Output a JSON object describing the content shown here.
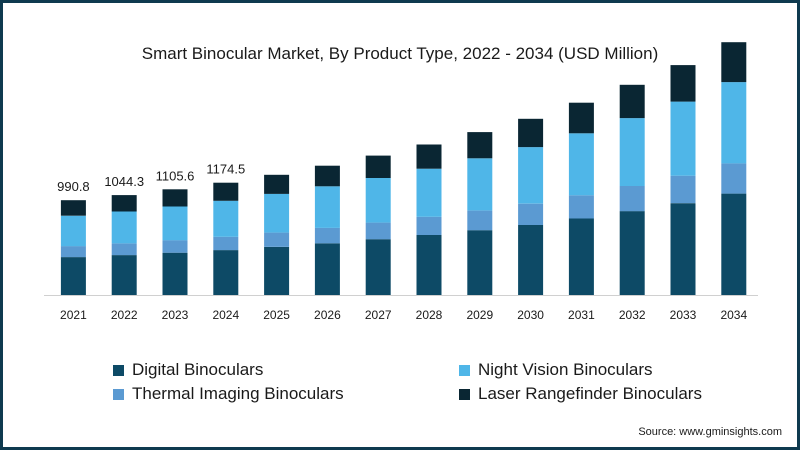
{
  "chart_data": {
    "type": "bar",
    "stacked": true,
    "title": "Smart Binocular Market, By Product Type, 2022 - 2034 (USD Million)",
    "categories": [
      "2021",
      "2022",
      "2023",
      "2024",
      "2025",
      "2026",
      "2027",
      "2028",
      "2029",
      "2030",
      "2031",
      "2032",
      "2033",
      "2034"
    ],
    "series": [
      {
        "name": "Digital Binoculars",
        "color": "#0d4a66",
        "values": [
          396.3,
          417.7,
          442.2,
          469.8,
          502,
          541,
          583,
          628,
          678,
          732,
          800,
          877,
          960,
          1060
        ]
      },
      {
        "name": "Thermal Imaging Binoculars",
        "color": "#5b9ad2",
        "values": [
          114.5,
          121.1,
          130.3,
          139.0,
          150,
          161,
          174,
          190,
          205,
          223,
          243,
          263,
          287,
          316
        ]
      },
      {
        "name": "Night Vision Binoculars",
        "color": "#4fb6e8",
        "values": [
          317.6,
          334.0,
          352.9,
          376.7,
          405,
          435,
          467,
          503,
          546,
          591,
          648,
          710,
          775,
          850
        ]
      },
      {
        "name": "Laser Rangefinder Binoculars",
        "color": "#0a2633",
        "values": [
          162.4,
          171.5,
          180.2,
          189.0,
          200,
          215,
          234,
          253,
          274,
          296,
          320,
          348,
          382,
          417
        ]
      }
    ],
    "data_labels": [
      "990.8",
      "1044.3",
      "1105.6",
      "1174.5"
    ],
    "ylim": [
      0,
      2750
    ],
    "legend_position": "bottom"
  },
  "legend": [
    {
      "label": "Digital Binoculars",
      "color": "#0d4a66"
    },
    {
      "label": "Night Vision Binoculars",
      "color": "#4fb6e8"
    },
    {
      "label": "Thermal Imaging Binoculars",
      "color": "#5b9ad2"
    },
    {
      "label": "Laser Rangefinder Binoculars",
      "color": "#0a2633"
    }
  ],
  "source": "Source: www.gminsights.com"
}
